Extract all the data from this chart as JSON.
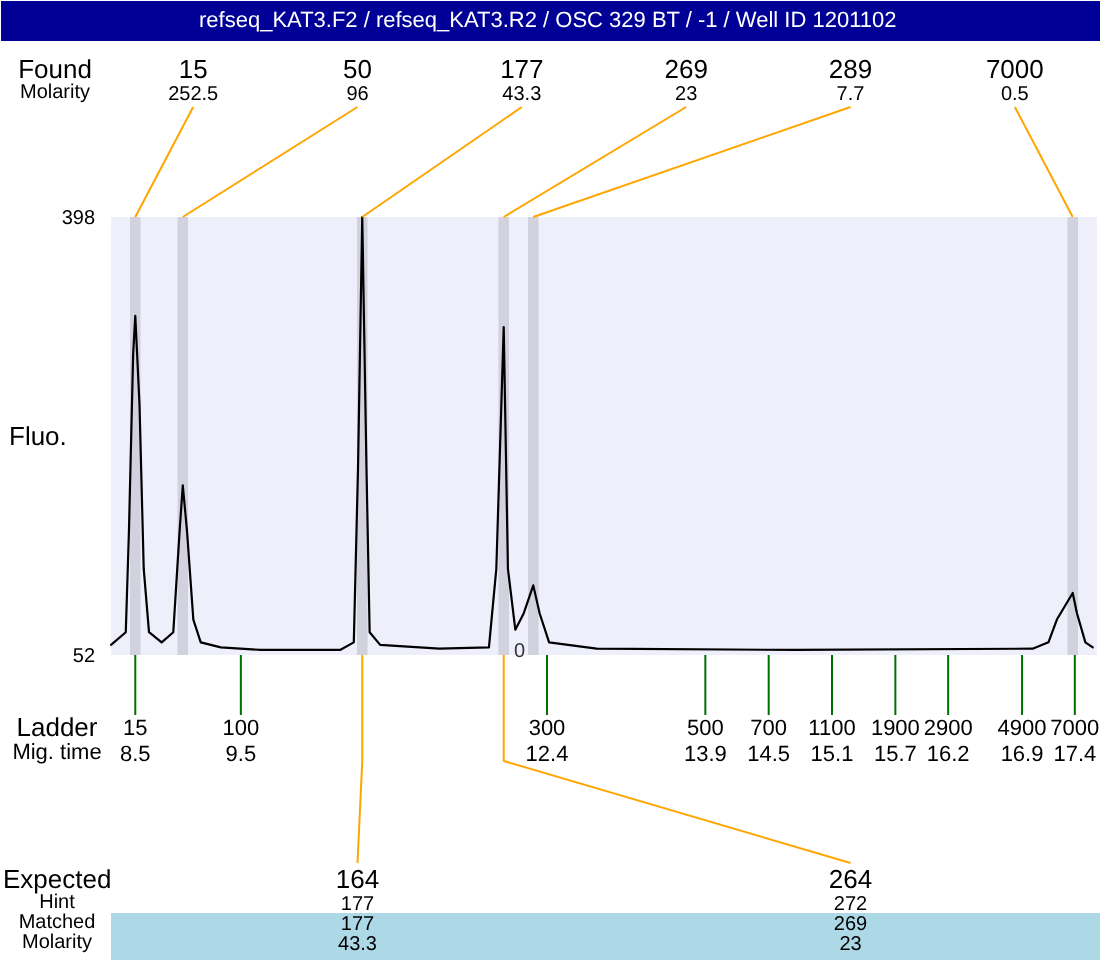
{
  "chart_data": {
    "type": "line",
    "title": "refseq_KAT3.F2 / refseq_KAT3.R2 / OSC 329 BT  / -1 / Well ID 1201102",
    "xlabel": "Mig. time",
    "ylabel": "Fluo.",
    "color": "#000000",
    "x": [
      8.27,
      8.41,
      8.44,
      8.48,
      8.5,
      8.54,
      8.58,
      8.63,
      8.75,
      8.86,
      8.92,
      8.95,
      8.99,
      9.05,
      9.12,
      9.31,
      9.69,
      10.44,
      10.57,
      10.61,
      10.65,
      10.69,
      10.72,
      10.82,
      11.38,
      11.85,
      11.92,
      11.99,
      12.03,
      12.1,
      12.18,
      12.27,
      12.33,
      12.42,
      12.87,
      14.75,
      17.0,
      17.15,
      17.23,
      17.38,
      17.42,
      17.5,
      17.57
    ],
    "values": [
      60,
      70,
      150,
      290,
      320,
      250,
      120,
      70,
      62,
      70,
      150,
      186,
      150,
      80,
      62,
      58,
      56,
      56,
      62,
      200,
      398,
      200,
      70,
      60,
      57,
      58,
      120,
      311,
      120,
      72,
      85,
      107,
      85,
      62,
      57,
      56,
      57,
      62,
      80,
      101,
      85,
      62,
      58
    ],
    "xlim": [
      8.27,
      17.61
    ],
    "ylim": [
      52,
      398
    ],
    "yticks": [
      52,
      398
    ],
    "xticks": [
      8.5,
      9.5,
      12.4,
      13.9,
      14.5,
      15.1,
      15.7,
      16.2,
      16.9,
      17.4
    ],
    "bands": [
      {
        "axis": "x",
        "from": 8.45,
        "to": 8.55,
        "color": "#d2d2de"
      },
      {
        "axis": "x",
        "from": 8.9,
        "to": 9.0,
        "color": "#d2d2de"
      },
      {
        "axis": "x",
        "from": 10.6,
        "to": 10.7,
        "color": "#d2d2de"
      },
      {
        "axis": "x",
        "from": 11.94,
        "to": 12.04,
        "color": "#d2d2de"
      },
      {
        "axis": "x",
        "from": 12.22,
        "to": 12.32,
        "color": "#d2d2de"
      },
      {
        "axis": "x",
        "from": 17.33,
        "to": 17.43,
        "color": "#d2d2de"
      }
    ],
    "annotations": [
      "Found",
      "Molarity",
      "Ladder",
      "Expected",
      "Hint",
      "Matched",
      "Molarity",
      "177",
      "177",
      "43.3",
      "272",
      "269",
      "23",
      {
        "text": "15",
        "x": 8.5,
        "y": 398
      },
      {
        "text": "252.5",
        "x": 8.5,
        "y": 398
      },
      {
        "text": "50",
        "x": 8.95,
        "y": 398
      },
      {
        "text": "96",
        "x": 8.95,
        "y": 398
      },
      {
        "text": "177",
        "x": 10.65,
        "y": 398
      },
      {
        "text": "43.3",
        "x": 10.65,
        "y": 398
      },
      {
        "text": "269",
        "x": 11.99,
        "y": 398
      },
      {
        "text": "23",
        "x": 11.99,
        "y": 398
      },
      {
        "text": "289",
        "x": 12.27,
        "y": 398
      },
      {
        "text": "7.7",
        "x": 12.27,
        "y": 398
      },
      {
        "text": "7000",
        "x": 17.38,
        "y": 398
      },
      {
        "text": "0.5",
        "x": 17.38,
        "y": 398
      },
      {
        "text": "15",
        "x": 8.5,
        "y": 52
      },
      {
        "text": "100",
        "x": 9.5,
        "y": 52
      },
      {
        "text": "300",
        "x": 12.4,
        "y": 52
      },
      {
        "text": "500",
        "x": 13.9,
        "y": 52
      },
      {
        "text": "700",
        "x": 14.5,
        "y": 52
      },
      {
        "text": "1100",
        "x": 15.1,
        "y": 52
      },
      {
        "text": "1900",
        "x": 15.7,
        "y": 52
      },
      {
        "text": "2900",
        "x": 16.2,
        "y": 52
      },
      {
        "text": "4900",
        "x": 16.9,
        "y": 52
      },
      {
        "text": "7000",
        "x": 17.4,
        "y": 52
      },
      {
        "text": "164",
        "x": 10.65,
        "y": 52
      },
      {
        "text": "264",
        "x": 11.99,
        "y": 52
      },
      {
        "text": "0",
        "x": 12.14,
        "y": 56
      }
    ]
  }
}
